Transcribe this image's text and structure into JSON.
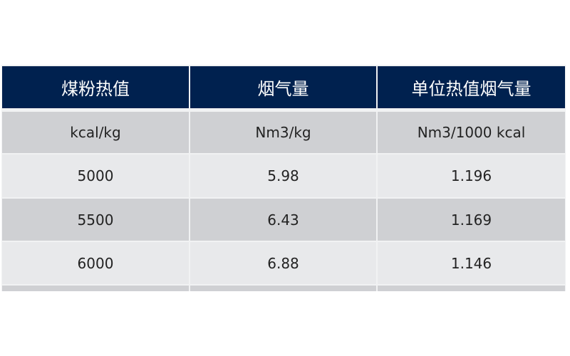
{
  "table": {
    "headers": [
      "煤粉热值",
      "烟气量",
      "单位热值烟气量"
    ],
    "units": [
      "kcal/kg",
      "Nm3/kg",
      "Nm3/1000 kcal"
    ],
    "rows": [
      [
        "5000",
        "5.98",
        "1.196"
      ],
      [
        "5500",
        "6.43",
        "1.169"
      ],
      [
        "6000",
        "6.88",
        "1.146"
      ]
    ],
    "colors": {
      "header_bg": "#00214f",
      "header_text": "#ffffff",
      "row_dark": "#cfd0d3",
      "row_light": "#e8e9eb"
    }
  }
}
